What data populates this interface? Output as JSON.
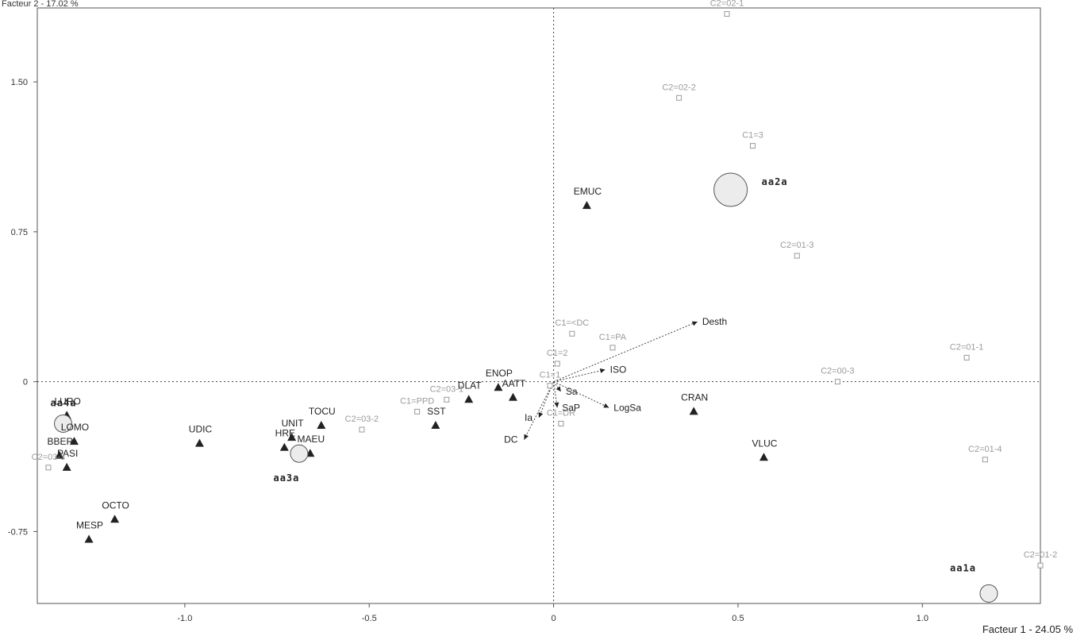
{
  "chart_data": {
    "type": "scatter",
    "axes": {
      "x": {
        "title": "Facteur 1 - 24.05 %",
        "range": [
          -1.4,
          1.32
        ],
        "ticks": [
          -1.0,
          -0.5,
          0,
          0.5,
          1.0
        ],
        "tick_labels": [
          "-1.0",
          "-0.5",
          "0",
          "0.5",
          "1.0"
        ]
      },
      "y": {
        "title": "Facteur 2 - 17.02 %",
        "range": [
          -1.11,
          1.87
        ],
        "ticks": [
          1.5,
          0.75,
          0,
          -0.75
        ],
        "tick_labels": [
          "1.50",
          "0.75",
          "0",
          "-0.75"
        ]
      }
    },
    "grid": false,
    "series": [
      {
        "marker": "triangle",
        "points": [
          {
            "label": "EMUC",
            "x": 0.09,
            "y": 0.88
          },
          {
            "label": "ENOP",
            "x": -0.15,
            "y": -0.03
          },
          {
            "label": "DLAT",
            "x": -0.23,
            "y": -0.09
          },
          {
            "label": "AATT",
            "x": -0.11,
            "y": -0.08
          },
          {
            "label": "SST",
            "x": -0.32,
            "y": -0.22
          },
          {
            "label": "TOCU",
            "x": -0.63,
            "y": -0.22
          },
          {
            "label": "UNIT",
            "x": -0.71,
            "y": -0.28
          },
          {
            "label": "HRE",
            "x": -0.73,
            "y": -0.33
          },
          {
            "label": "MAEU",
            "x": -0.66,
            "y": -0.36
          },
          {
            "label": "UDIC",
            "x": -0.96,
            "y": -0.31
          },
          {
            "label": "LURO",
            "x": -1.32,
            "y": -0.17
          },
          {
            "label": "LOMO",
            "x": -1.3,
            "y": -0.3
          },
          {
            "label": "BBER",
            "x": -1.34,
            "y": -0.37
          },
          {
            "label": "PASI",
            "x": -1.32,
            "y": -0.43
          },
          {
            "label": "OCTO",
            "x": -1.19,
            "y": -0.69
          },
          {
            "label": "MESP",
            "x": -1.26,
            "y": -0.79
          },
          {
            "label": "CRAN",
            "x": 0.38,
            "y": -0.15
          },
          {
            "label": "VLUC",
            "x": 0.57,
            "y": -0.38
          }
        ]
      },
      {
        "marker": "square",
        "points": [
          {
            "label": "C2=02-1",
            "x": 0.47,
            "y": 1.84
          },
          {
            "label": "C2=02-2",
            "x": 0.34,
            "y": 1.42
          },
          {
            "label": "C1=3",
            "x": 0.54,
            "y": 1.18
          },
          {
            "label": "C2=01-3",
            "x": 0.66,
            "y": 0.63
          },
          {
            "label": "C1=<DC",
            "x": 0.05,
            "y": 0.24
          },
          {
            "label": "C1=PA",
            "x": 0.16,
            "y": 0.17
          },
          {
            "label": "C1=2",
            "x": 0.01,
            "y": 0.09
          },
          {
            "label": "C1=1",
            "x": -0.01,
            "y": -0.02
          },
          {
            "label": "C2=03-1",
            "x": -0.29,
            "y": -0.09
          },
          {
            "label": "C1=PPD",
            "x": -0.37,
            "y": -0.15
          },
          {
            "label": "C2=03-2",
            "x": -0.52,
            "y": -0.24
          },
          {
            "label": "C2=03-3",
            "x": -1.37,
            "y": -0.43
          },
          {
            "label": "C1=DR",
            "x": 0.02,
            "y": -0.21
          },
          {
            "label": "C2=00-3",
            "x": 0.77,
            "y": 0.0
          },
          {
            "label": "C2=01-1",
            "x": 1.12,
            "y": 0.12
          },
          {
            "label": "C2=01-4",
            "x": 1.17,
            "y": -0.39
          },
          {
            "label": "C2=01-2",
            "x": 1.32,
            "y": -0.92
          }
        ]
      },
      {
        "marker": "circle",
        "points": [
          {
            "label": "aa1a",
            "x": 1.18,
            "y": -1.06,
            "size": 1
          },
          {
            "label": "aa2a",
            "x": 0.48,
            "y": 0.96,
            "size": 2
          },
          {
            "label": "aa3a",
            "x": -0.69,
            "y": -0.36,
            "size": 1
          },
          {
            "label": "aa4a",
            "x": -1.33,
            "y": -0.21,
            "size": 1
          }
        ]
      },
      {
        "marker": "arrow",
        "points": [
          {
            "label": "Desth",
            "x": 0.39,
            "y": 0.3
          },
          {
            "label": "ISO",
            "x": 0.14,
            "y": 0.06
          },
          {
            "label": "Sa",
            "x": 0.02,
            "y": -0.05
          },
          {
            "label": "SaP",
            "x": 0.01,
            "y": -0.13
          },
          {
            "label": "LogSa",
            "x": 0.15,
            "y": -0.13
          },
          {
            "label": "Ia",
            "x": -0.04,
            "y": -0.18
          },
          {
            "label": "DC",
            "x": -0.08,
            "y": -0.29
          }
        ]
      }
    ]
  }
}
